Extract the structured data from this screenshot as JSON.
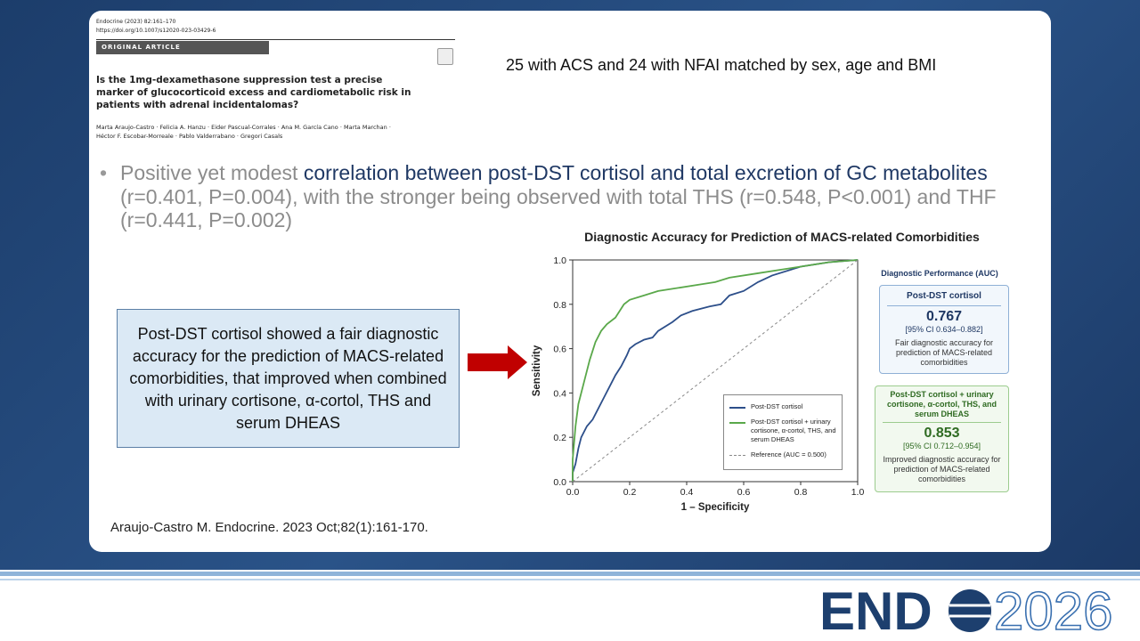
{
  "paper": {
    "journal": "Endocrine (2023) 82:161–170",
    "doi": "https://doi.org/10.1007/s12020-023-03429-6",
    "section": "ORIGINAL ARTICLE",
    "title": "Is the 1mg-dexamethasone suppression test a precise marker of glucocorticoid excess and cardiometabolic risk in patients with adrenal incidentalomas?",
    "authors": [
      "Marta Araujo-Castro · Felicia A. Hanzu · Eider Pascual-Corrales · Ana M. García Cano · Marta Marchan ·",
      "Héctor F. Escobar-Morreale · Pablo Valderrabano · Gregori Casals"
    ]
  },
  "note": "25 with ACS and 24 with NFAI matched by sex, age and BMI",
  "bullet": [
    "Positive yet modest ",
    "correlation between post-DST cortisol and total excretion of GC metabolites",
    " (r=0.401, P=0.004), with the stronger being observed with total THS (r=0.548, P<0.001) and THF (r=0.441, P=0.002)"
  ],
  "callout": "Post-DST cortisol showed a fair diagnostic accuracy for the prediction of MACS-related comorbidities, that improved when combined with urinary cortisone, α-cortol, THS and serum DHEAS",
  "chart_data": {
    "type": "line",
    "title": "Diagnostic Accuracy for Prediction of MACS-related Comorbidities",
    "xlabel": "1 – Specificity",
    "ylabel": "Sensitivity",
    "xlim": [
      0,
      1
    ],
    "ylim": [
      0,
      1
    ],
    "xticks": [
      {
        "value": 0,
        "label": "0.0"
      },
      {
        "value": 0.2,
        "label": "0.2"
      },
      {
        "value": 0.4,
        "label": "0.4"
      },
      {
        "value": 0.6,
        "label": "0.6"
      },
      {
        "value": 0.8,
        "label": "0.8"
      },
      {
        "value": 1,
        "label": "1.0"
      }
    ],
    "yticks": [
      {
        "value": 0,
        "label": "0.0"
      },
      {
        "value": 0.2,
        "label": "0.2"
      },
      {
        "value": 0.4,
        "label": "0.4"
      },
      {
        "value": 0.6,
        "label": "0.6"
      },
      {
        "value": 0.8,
        "label": "0.8"
      },
      {
        "value": 1,
        "label": "1.0"
      }
    ],
    "series": [
      {
        "name": "Post-DST cortisol",
        "color": "#2d4f8a",
        "x": [
          0,
          0,
          0.01,
          0.02,
          0.03,
          0.05,
          0.07,
          0.09,
          0.11,
          0.13,
          0.15,
          0.17,
          0.19,
          0.2,
          0.22,
          0.25,
          0.28,
          0.3,
          0.35,
          0.38,
          0.42,
          0.48,
          0.52,
          0.55,
          0.6,
          0.65,
          0.7,
          0.8,
          0.9,
          1
        ],
        "values": [
          0,
          0.04,
          0.08,
          0.15,
          0.2,
          0.25,
          0.28,
          0.33,
          0.38,
          0.43,
          0.48,
          0.52,
          0.57,
          0.6,
          0.62,
          0.64,
          0.65,
          0.68,
          0.72,
          0.75,
          0.77,
          0.79,
          0.8,
          0.84,
          0.86,
          0.9,
          0.93,
          0.97,
          0.99,
          1
        ]
      },
      {
        "name": "Post-DST cortisol + urinary cortisone, α-cortol, THS, and serum DHEAS",
        "color": "#5aa84a",
        "x": [
          0,
          0,
          0.01,
          0.02,
          0.04,
          0.06,
          0.08,
          0.1,
          0.12,
          0.15,
          0.18,
          0.2,
          0.25,
          0.3,
          0.35,
          0.45,
          0.5,
          0.55,
          0.65,
          0.8,
          0.9,
          1
        ],
        "values": [
          0,
          0.1,
          0.25,
          0.35,
          0.45,
          0.55,
          0.63,
          0.68,
          0.71,
          0.74,
          0.8,
          0.82,
          0.84,
          0.86,
          0.87,
          0.89,
          0.9,
          0.92,
          0.94,
          0.97,
          0.99,
          1
        ]
      },
      {
        "name": "Reference (AUC = 0.500)",
        "color": "#888888",
        "dashed": true,
        "x": [
          0,
          1
        ],
        "values": [
          0,
          1
        ]
      }
    ]
  },
  "performance": {
    "title": "Diagnostic Performance (AUC)",
    "boxes": [
      {
        "name": "Post-DST cortisol",
        "auc": 0.767,
        "ci": "[95% CI 0.634–0.882]",
        "text": "Fair diagnostic accuracy for prediction of MACS-related comorbidities"
      },
      {
        "name": "Post-DST cortisol + urinary cortisone, α-cortol, THS, and serum DHEAS",
        "auc": 0.853,
        "ci": "[95% CI 0.712–0.954]",
        "text": "Improved diagnostic accuracy for prediction of MACS-related comorbidities"
      }
    ]
  },
  "citation": "Araujo-Castro M. Endocrine. 2023 Oct;82(1):161-170.",
  "logo": {
    "left": "END",
    "right": "2026"
  }
}
